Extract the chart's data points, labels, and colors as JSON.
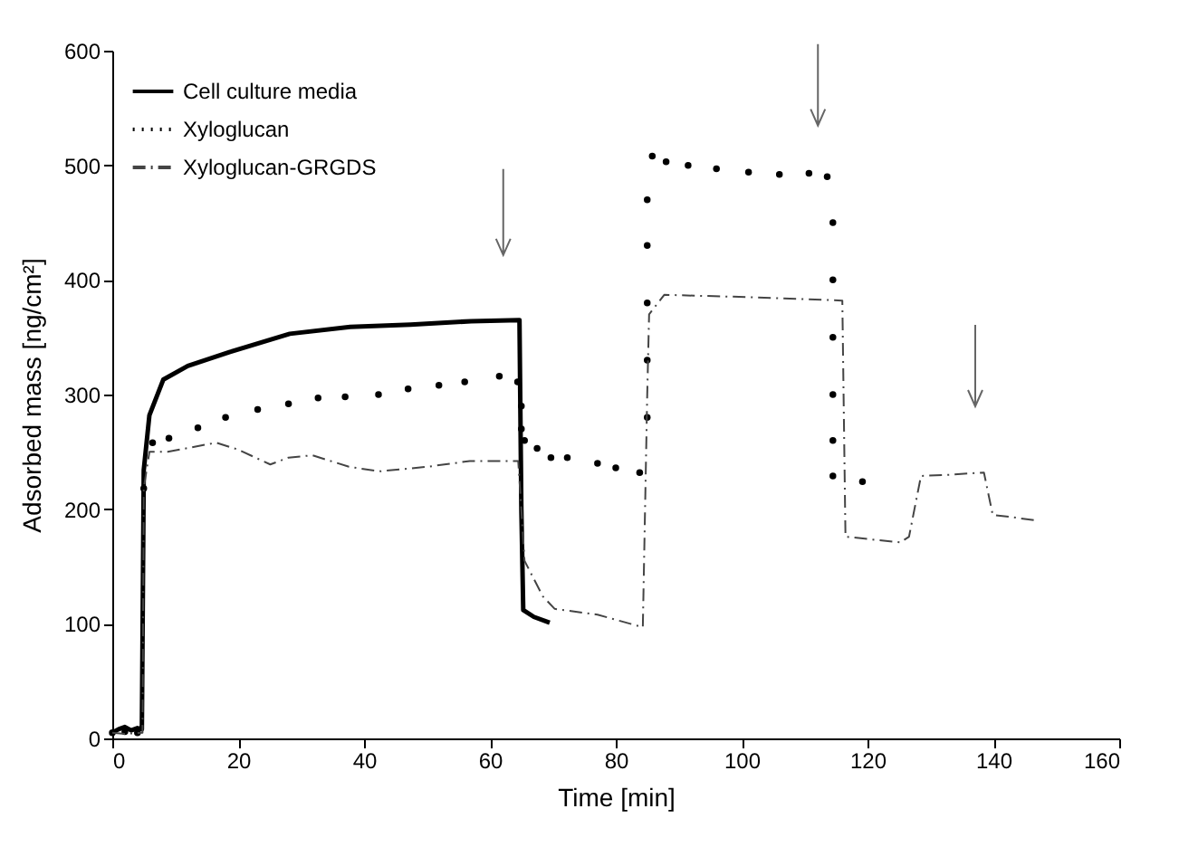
{
  "chart_data": {
    "type": "line",
    "xlabel": "Time [min]",
    "ylabel": "Adsorbed mass [ng/cm²]",
    "xlim": [
      0,
      160
    ],
    "xticks": [
      0,
      20,
      40,
      60,
      80,
      100,
      120,
      140,
      160
    ],
    "ylim": [
      0,
      600
    ],
    "yticks": [
      0,
      100,
      200,
      300,
      400,
      500,
      600
    ],
    "legend": "top left",
    "series": [
      {
        "name": "Cell culture media",
        "line_style": "solid",
        "color": "#000000",
        "x": [
          0,
          1,
          2,
          3,
          4,
          4.7,
          5.0,
          5.9,
          8.1,
          12,
          18.6,
          28.2,
          37.8,
          47.4,
          57,
          64.7,
          65,
          65.3,
          67,
          69.5
        ],
        "values": [
          5,
          8,
          10,
          7,
          9,
          8,
          234,
          282,
          313,
          325,
          337,
          353,
          359,
          361,
          364,
          365,
          200,
          112,
          106,
          101
        ]
      },
      {
        "name": "Xyloglucan",
        "type": "scatter",
        "marker": "circle",
        "color": "#000000",
        "x": [
          0,
          2,
          4,
          5.0,
          6.4,
          9,
          13.6,
          18,
          23.1,
          28,
          32.7,
          37,
          42.3,
          47,
          51.9,
          56,
          61.5,
          64.4,
          65,
          65,
          65.5,
          67.5,
          69.7,
          72.3,
          77.1,
          80,
          83.8,
          85,
          85,
          85,
          85,
          85,
          85.8,
          88,
          91.5,
          96,
          101.1,
          106,
          110.7,
          113.6,
          114.5,
          114.5,
          114.5,
          114.5,
          114.5,
          114.5,
          119.2
        ],
        "values": [
          5,
          6,
          5,
          218,
          258,
          262,
          271,
          280,
          287,
          292,
          297,
          298,
          300,
          305,
          308,
          311,
          316,
          311,
          290,
          270,
          260,
          253,
          245,
          245,
          240,
          236,
          232,
          280,
          330,
          380,
          430,
          470,
          508,
          503,
          500,
          497,
          494,
          492,
          493,
          490,
          450,
          400,
          350,
          300,
          260,
          229,
          224
        ]
      },
      {
        "name": "Xyloglucan-GRGDS",
        "line_style": "dashed",
        "color": "#444444",
        "x": [
          0,
          2,
          4.8,
          5.0,
          5.9,
          8.8,
          16.5,
          20,
          25.1,
          28,
          31.8,
          37.6,
          42.4,
          50.1,
          56.8,
          64.5,
          65,
          65.5,
          68.4,
          70.3,
          77.1,
          84.3,
          85,
          85.3,
          87.7,
          101.1,
          116,
          116.5,
          120,
          125.2,
          126.6,
          128.5,
          133,
          138.5,
          139.9,
          143,
          147
        ],
        "values": [
          5,
          4,
          5,
          218,
          250,
          250,
          258,
          252,
          239,
          245,
          247,
          237,
          233,
          237,
          242,
          242,
          200,
          155,
          124,
          113,
          108,
          97,
          300,
          370,
          387,
          385,
          382,
          176,
          174,
          171,
          176,
          229,
          230,
          232,
          195,
          193,
          190
        ]
      }
    ]
  }
}
